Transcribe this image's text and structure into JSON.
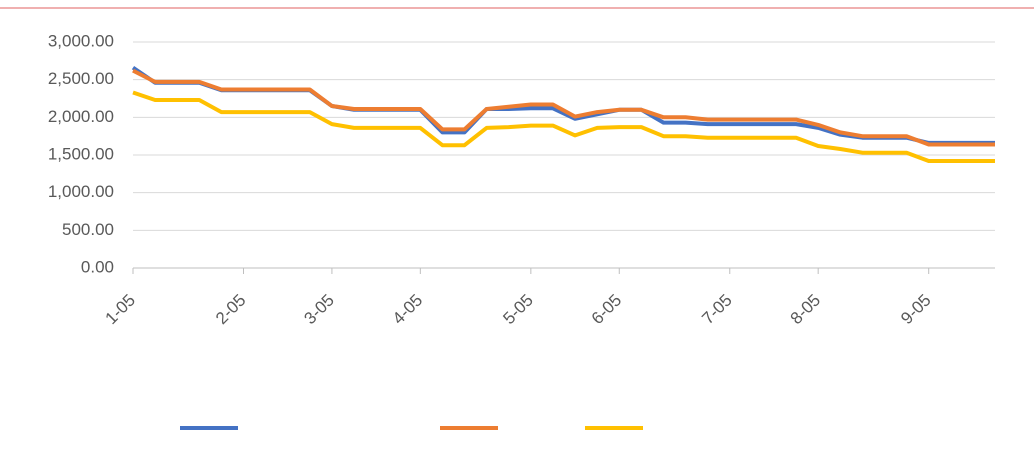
{
  "chart_data": {
    "type": "line",
    "categories": [
      "1-05",
      null,
      null,
      null,
      null,
      "2-05",
      null,
      null,
      null,
      "3-05",
      null,
      null,
      null,
      "4-05",
      null,
      null,
      null,
      null,
      "5-05",
      null,
      null,
      null,
      "6-05",
      null,
      null,
      null,
      null,
      "7-05",
      null,
      null,
      null,
      "8-05",
      null,
      null,
      null,
      null,
      "9-05",
      null,
      null,
      null
    ],
    "series": [
      {
        "color": "#4472c4",
        "values": [
          2660,
          2460,
          2460,
          2460,
          2360,
          2360,
          2360,
          2360,
          2360,
          2150,
          2100,
          2100,
          2100,
          2100,
          1800,
          1800,
          2110,
          2110,
          2120,
          2120,
          1980,
          2040,
          2100,
          2100,
          1930,
          1930,
          1910,
          1910,
          1910,
          1910,
          1910,
          1860,
          1770,
          1730,
          1730,
          1730,
          1660,
          1660,
          1660,
          1660
        ]
      },
      {
        "color": "#ed7d31",
        "values": [
          2620,
          2470,
          2470,
          2470,
          2370,
          2370,
          2370,
          2370,
          2370,
          2150,
          2110,
          2110,
          2110,
          2110,
          1840,
          1840,
          2110,
          2140,
          2170,
          2170,
          2010,
          2070,
          2100,
          2100,
          2000,
          2000,
          1970,
          1970,
          1970,
          1970,
          1970,
          1900,
          1800,
          1750,
          1750,
          1750,
          1640,
          1640,
          1640,
          1640
        ]
      },
      {
        "color": "#ffc000",
        "values": [
          2330,
          2230,
          2230,
          2230,
          2070,
          2070,
          2070,
          2070,
          2070,
          1910,
          1860,
          1860,
          1860,
          1860,
          1630,
          1630,
          1860,
          1870,
          1890,
          1890,
          1760,
          1860,
          1870,
          1870,
          1750,
          1750,
          1730,
          1730,
          1730,
          1730,
          1730,
          1620,
          1580,
          1530,
          1530,
          1530,
          1420,
          1420,
          1420,
          1420
        ]
      }
    ],
    "ylim": [
      0,
      3000
    ],
    "yticks": [
      {
        "value": 0,
        "label": "0.00"
      },
      {
        "value": 500,
        "label": "500.00"
      },
      {
        "value": 1000,
        "label": "1,000.00"
      },
      {
        "value": 1500,
        "label": "1,500.00"
      },
      {
        "value": 2000,
        "label": "2,000.00"
      },
      {
        "value": 2500,
        "label": "2,500.00"
      },
      {
        "value": 3000,
        "label": "3,000.00"
      }
    ],
    "grid": true
  }
}
